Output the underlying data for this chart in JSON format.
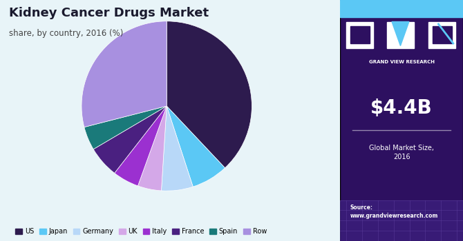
{
  "title": "Kidney Cancer Drugs Market",
  "subtitle": "share, by country, 2016 (%)",
  "labels": [
    "US",
    "Japan",
    "Germany",
    "UK",
    "Italy",
    "France",
    "Spain",
    "Row"
  ],
  "values": [
    38,
    7,
    6,
    4.5,
    5,
    6,
    4.5,
    29
  ],
  "colors": [
    "#2d1b4e",
    "#5bc8f5",
    "#b8d8f8",
    "#d4a8e8",
    "#9b30d0",
    "#4a2080",
    "#1a7a7a",
    "#a890e0"
  ],
  "background_color": "#e8f4f8",
  "right_panel_color": "#2d1060",
  "market_size": "$4.4B",
  "market_size_label": "Global Market Size,\n2016",
  "source_text": "Source:\nwww.grandviewresearch.com",
  "top_bar_color": "#5bc8f5",
  "logo_text": "GRAND VIEW RESEARCH"
}
